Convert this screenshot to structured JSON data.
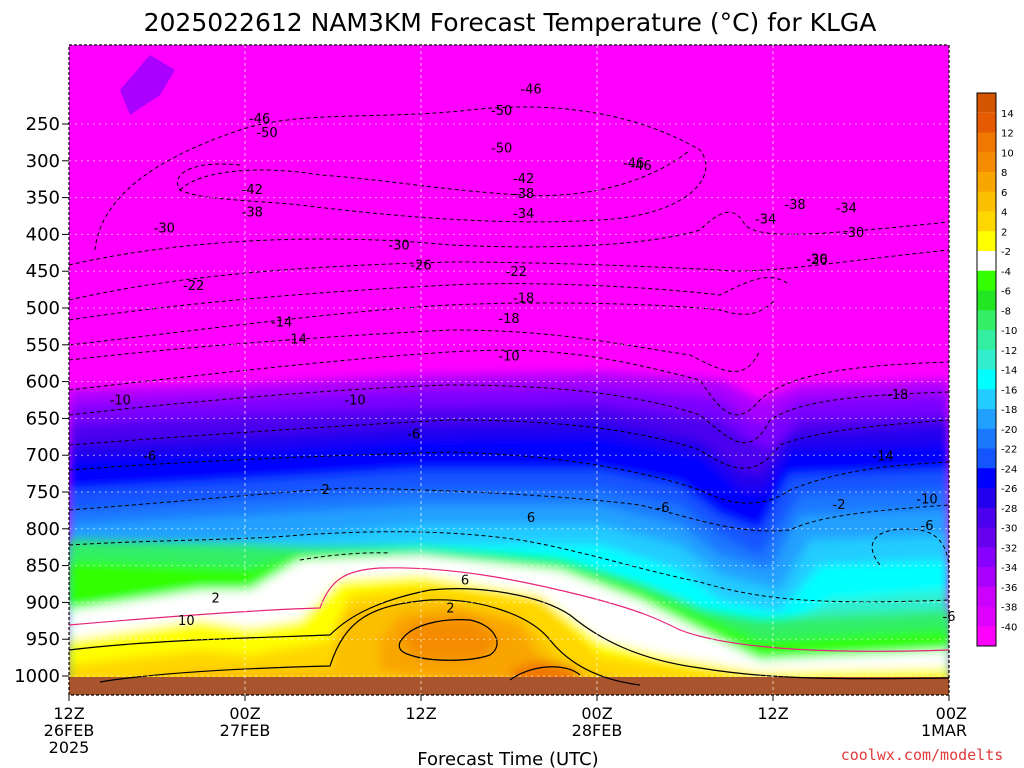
{
  "chart_data": {
    "type": "heatmap",
    "title": "2025022612 NAM3KM Forecast Temperature (°C) for KLGA",
    "xlabel": "Forecast Time (UTC)",
    "ylabel": "",
    "credit": "coolwx.com/modelts",
    "y_scale": "pressure (hPa), decreasing upward",
    "ylim": [
      1035,
      200
    ],
    "x_ticks": [
      {
        "hour": 0,
        "line1": "12Z",
        "line2": "26FEB",
        "line3": "2025"
      },
      {
        "hour": 12,
        "line1": "00Z",
        "line2": "27FEB",
        "line3": ""
      },
      {
        "hour": 24,
        "line1": "12Z",
        "line2": "",
        "line3": ""
      },
      {
        "hour": 36,
        "line1": "00Z",
        "line2": "28FEB",
        "line3": ""
      },
      {
        "hour": 48,
        "line1": "12Z",
        "line2": "",
        "line3": ""
      },
      {
        "hour": 60,
        "line1": "00Z",
        "line2": "1MAR",
        "line3": ""
      }
    ],
    "y_ticks": [
      250,
      300,
      350,
      400,
      450,
      500,
      550,
      600,
      650,
      700,
      750,
      800,
      850,
      900,
      950,
      1000
    ],
    "colorbar_labels": [
      14,
      12,
      10,
      8,
      6,
      4,
      2,
      -2,
      -4,
      -6,
      -8,
      -10,
      -12,
      -14,
      -16,
      -18,
      -20,
      -22,
      -24,
      -26,
      -28,
      -30,
      -32,
      -34,
      -36,
      -38,
      -40
    ],
    "colorbar_colors": [
      "#e65a00",
      "#f07800",
      "#f58c00",
      "#f9a500",
      "#fbbf00",
      "#ffd700",
      "#ffff00",
      "#ffffff",
      "#33ff00",
      "#22e622",
      "#33ee66",
      "#33eea0",
      "#33eecc",
      "#00ffff",
      "#22ccff",
      "#22a0ff",
      "#1a78ff",
      "#1455ff",
      "#0000ff",
      "#2200ee",
      "#4b00ee",
      "#6600ee",
      "#8800ff",
      "#aa00ff",
      "#cc00ff",
      "#dd00ff",
      "#ff00ff"
    ],
    "surface_color": "#a8552e",
    "hours": [
      0,
      6,
      12,
      18,
      24,
      30,
      36,
      42,
      48,
      54,
      60
    ],
    "temperature_profiles": [
      {
        "hour": 0,
        "p": [
          1000,
          950,
          900,
          850,
          800,
          750,
          700,
          650,
          600,
          550,
          500,
          450,
          400,
          350,
          300,
          250
        ],
        "t": [
          6,
          4,
          2,
          0,
          -4,
          -6,
          -9,
          -12,
          -16,
          -20,
          -24,
          -30,
          -36,
          -44,
          -48,
          -46
        ]
      },
      {
        "hour": 12,
        "p": [
          1000,
          950,
          900,
          850,
          800,
          750,
          700,
          650,
          600,
          550,
          500,
          450,
          400,
          350,
          300,
          250
        ],
        "t": [
          6,
          3,
          2,
          1,
          -2,
          -5,
          -8,
          -11,
          -15,
          -19,
          -24,
          -29,
          -36,
          -43,
          -50,
          -46
        ]
      },
      {
        "hour": 24,
        "p": [
          1000,
          950,
          900,
          850,
          800,
          750,
          700,
          650,
          600,
          550,
          500,
          450,
          400,
          350,
          300,
          250
        ],
        "t": [
          8,
          10,
          10,
          6,
          3,
          -2,
          -7,
          -11,
          -14,
          -18,
          -22,
          -27,
          -34,
          -42,
          -49,
          -50
        ]
      },
      {
        "hour": 36,
        "p": [
          1000,
          950,
          900,
          850,
          800,
          750,
          700,
          650,
          600,
          550,
          500,
          450,
          400,
          350,
          300,
          250
        ],
        "t": [
          8,
          6,
          3,
          1,
          -1,
          -4,
          -8,
          -10,
          -15,
          -19,
          -23,
          -28,
          -35,
          -42,
          -50,
          -47
        ]
      },
      {
        "hour": 48,
        "p": [
          1000,
          950,
          900,
          850,
          800,
          750,
          700,
          650,
          600,
          550,
          500,
          450,
          400,
          350,
          300,
          250
        ],
        "t": [
          2,
          0,
          -4,
          -6,
          -9,
          -12,
          -15,
          -18,
          -22,
          -27,
          -32,
          -34,
          -36,
          -40,
          -46,
          -46
        ]
      },
      {
        "hour": 60,
        "p": [
          1000,
          950,
          900,
          850,
          800,
          750,
          700,
          650,
          600,
          550,
          500,
          450,
          400,
          350,
          300,
          250
        ],
        "t": [
          2,
          -2,
          -6,
          -7,
          -8,
          -8,
          -10,
          -13,
          -18,
          -23,
          -27,
          -31,
          -36,
          -43,
          -48,
          -46
        ]
      }
    ],
    "contour_labels": [
      "-46",
      "-50",
      "-46",
      "-50",
      "-50",
      "-46",
      "-46",
      "-42",
      "-42",
      "-38",
      "-38",
      "-34",
      "-34",
      "-30",
      "-30",
      "-30",
      "-26",
      "-26",
      "-22",
      "-22",
      "-18",
      "-18",
      "-14",
      "-14",
      "-10",
      "-10",
      "-10",
      "-6",
      "-6",
      "-6",
      "-2",
      "2",
      "6",
      "10",
      "6",
      "2",
      "2",
      "-6",
      "-18",
      "-14",
      "-10",
      "-38",
      "-34",
      "-30",
      "-6"
    ]
  }
}
